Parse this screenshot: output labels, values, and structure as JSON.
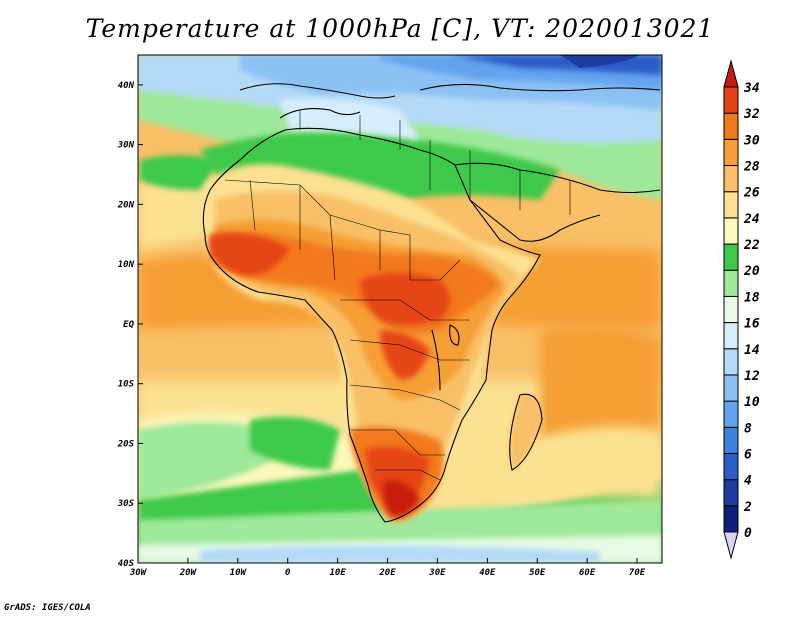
{
  "title": "Temperature at 1000hPa [C], VT: 2020013021",
  "footer": "GrADS: IGES/COLA",
  "map": {
    "lat_range": [
      -40,
      45
    ],
    "lon_range": [
      -30,
      75
    ],
    "lat_ticks": [
      {
        "value": 40,
        "label": "40N"
      },
      {
        "value": 30,
        "label": "30N"
      },
      {
        "value": 20,
        "label": "20N"
      },
      {
        "value": 10,
        "label": "10N"
      },
      {
        "value": 0,
        "label": "EQ"
      },
      {
        "value": -10,
        "label": "10S"
      },
      {
        "value": -20,
        "label": "20S"
      },
      {
        "value": -30,
        "label": "30S"
      },
      {
        "value": -40,
        "label": "40S"
      }
    ],
    "lon_ticks": [
      {
        "value": -30,
        "label": "30W"
      },
      {
        "value": -20,
        "label": "20W"
      },
      {
        "value": -10,
        "label": "10W"
      },
      {
        "value": 0,
        "label": "0"
      },
      {
        "value": 10,
        "label": "10E"
      },
      {
        "value": 20,
        "label": "20E"
      },
      {
        "value": 30,
        "label": "30E"
      },
      {
        "value": 40,
        "label": "40E"
      },
      {
        "value": 50,
        "label": "50E"
      },
      {
        "value": 60,
        "label": "60E"
      },
      {
        "value": 70,
        "label": "70E"
      }
    ]
  },
  "colorbar": {
    "levels": [
      {
        "value": 0,
        "label": "0",
        "color": "#0f1f78"
      },
      {
        "value": 2,
        "label": "2",
        "color": "#1e3ca0"
      },
      {
        "value": 4,
        "label": "4",
        "color": "#2b5cc8"
      },
      {
        "value": 6,
        "label": "6",
        "color": "#3f7fe0"
      },
      {
        "value": 8,
        "label": "8",
        "color": "#63a3ee"
      },
      {
        "value": 10,
        "label": "10",
        "color": "#8cc1f4"
      },
      {
        "value": 12,
        "label": "12",
        "color": "#b4daf8"
      },
      {
        "value": 14,
        "label": "14",
        "color": "#d6eefc"
      },
      {
        "value": 16,
        "label": "16",
        "color": "#e6fae6"
      },
      {
        "value": 18,
        "label": "18",
        "color": "#9fe99a"
      },
      {
        "value": 20,
        "label": "20",
        "color": "#3ec94a"
      },
      {
        "value": 22,
        "label": "22",
        "color": "#fdf8bc"
      },
      {
        "value": 24,
        "label": "24",
        "color": "#fbe191"
      },
      {
        "value": 26,
        "label": "26",
        "color": "#f9c067"
      },
      {
        "value": 28,
        "label": "28",
        "color": "#f69f36"
      },
      {
        "value": 30,
        "label": "30",
        "color": "#f27a1a"
      },
      {
        "value": 32,
        "label": "32",
        "color": "#e64417"
      },
      {
        "value": 34,
        "label": "34",
        "color": "#c81a10"
      }
    ],
    "under_color": "#d9d6f5",
    "over_color": "#c81a10"
  }
}
